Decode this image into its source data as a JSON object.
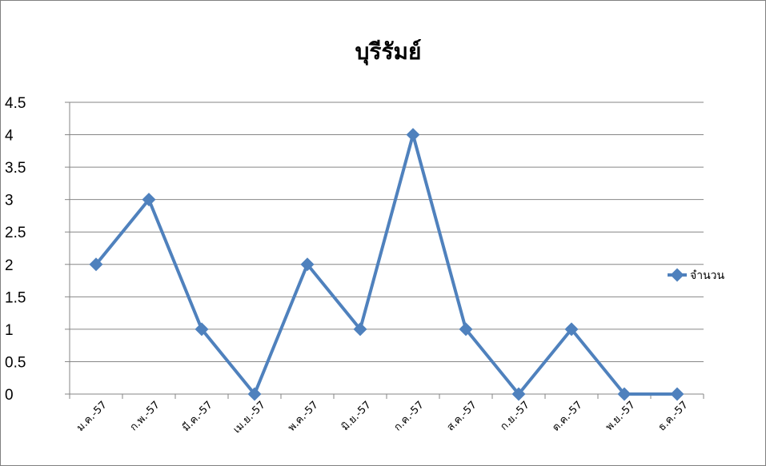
{
  "chart_data": {
    "type": "line",
    "title": "บุรีรัมย์",
    "xlabel": "",
    "ylabel": "",
    "categories": [
      "ม.ค.-57",
      "ก.พ.-57",
      "มี.ค.-57",
      "เม.ย.-57",
      "พ.ค.-57",
      "มิ.ย.-57",
      "ก.ค.-57",
      "ส.ค.-57",
      "ก.ย.-57",
      "ต.ค.-57",
      "พ.ย.-57",
      "ธ.ค.-57"
    ],
    "series": [
      {
        "name": "จำนวน",
        "values": [
          2,
          3,
          1,
          0,
          2,
          1,
          4,
          1,
          0,
          1,
          0,
          0
        ]
      }
    ],
    "ylim": [
      0,
      4.5
    ],
    "yticks": [
      "0",
      "0.5",
      "1",
      "1.5",
      "2",
      "2.5",
      "3",
      "3.5",
      "4",
      "4.5"
    ],
    "grid": "horizontal",
    "legend": "right",
    "colors": {
      "series": "#4F81BD",
      "grid": "#868686",
      "axis": "#868686"
    }
  }
}
